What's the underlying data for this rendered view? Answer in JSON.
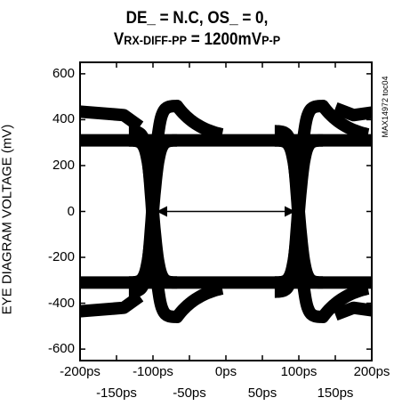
{
  "chart_data": {
    "type": "line",
    "title_line1": "DE_ = N.C, OS_ = 0,",
    "title_line2_prefix": "V",
    "title_line2_sub": "RX-DIFF-PP",
    "title_line2_mid": " = 1200mV",
    "title_line2_sub2": "P-P",
    "ylabel": "EYE DIAGRAM VOLTAGE (mV)",
    "side_label": "MAX14972 toc04",
    "xlim": [
      -200,
      200
    ],
    "ylim": [
      -650,
      650
    ],
    "x_ticks": [
      -200,
      -150,
      -100,
      -50,
      0,
      50,
      100,
      150,
      200
    ],
    "x_tick_labels": [
      "-200ps",
      "-150ps",
      "-100ps",
      "-50ps",
      "0ps",
      "50ps",
      "100ps",
      "150ps",
      "200ps"
    ],
    "y_ticks": [
      600,
      400,
      200,
      0,
      -200,
      -400,
      -600
    ],
    "y_tick_labels": [
      "600",
      "400",
      "200",
      "0",
      "-200",
      "-400",
      "-600"
    ],
    "eye_crossings_ps": [
      -100,
      100
    ],
    "levels_mV": {
      "high_settled": 310,
      "high_overshoot": 440,
      "low_settled": -310,
      "low_overshoot": -440
    },
    "annotation": "double-headed arrow between eye crossings at 0 mV"
  }
}
